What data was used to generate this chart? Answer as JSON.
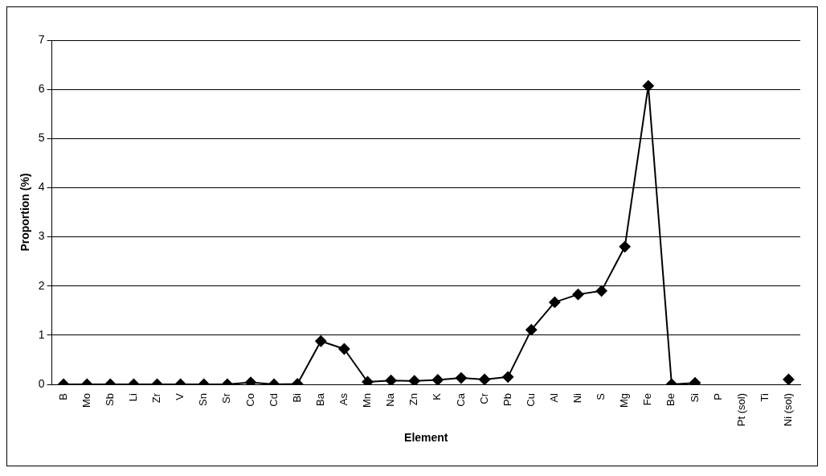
{
  "chart_data": {
    "type": "line",
    "xlabel": "Element",
    "ylabel": "Proportion (%)",
    "categories": [
      "B",
      "Mo",
      "Sb",
      "Li",
      "Zr",
      "V",
      "Sn",
      "Sr",
      "Co",
      "Cd",
      "Bi",
      "Ba",
      "As",
      "Mn",
      "Na",
      "Zn",
      "K",
      "Ca",
      "Cr",
      "Pb",
      "Cu",
      "Al",
      "Ni",
      "S",
      "Mg",
      "Fe",
      "Be",
      "Si",
      "P",
      "Pt (sol)",
      "Ti",
      "Ni (sol)"
    ],
    "series": [
      {
        "color": "#000000",
        "values": [
          0,
          0,
          0,
          0,
          0,
          0,
          0,
          0,
          0.04,
          0,
          0.01,
          0.88,
          0.72,
          0.05,
          0.08,
          0.07,
          0.09,
          0.13,
          0.1,
          0.15,
          1.11,
          1.67,
          1.83,
          1.9,
          2.8,
          6.07,
          0,
          0.03,
          null,
          null,
          null,
          0.1
        ]
      }
    ],
    "ylim": [
      0,
      7
    ],
    "yticks": [
      0,
      1,
      2,
      3,
      4,
      5,
      6,
      7
    ],
    "grid": "y",
    "legend": false,
    "marker": "diamond",
    "line_style": "solid"
  }
}
